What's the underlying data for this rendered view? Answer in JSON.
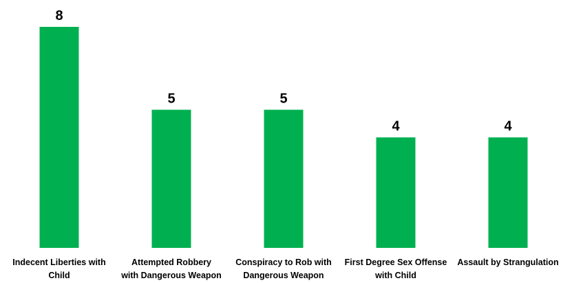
{
  "chart_data": {
    "type": "bar",
    "title": "",
    "xlabel": "",
    "ylabel": "",
    "categories": [
      [
        "Indecent Liberties with",
        "Child"
      ],
      [
        "Attempted Robbery",
        "with Dangerous Weapon"
      ],
      [
        "Conspiracy to Rob with",
        "Dangerous Weapon"
      ],
      [
        "First Degree Sex Offense",
        "with Child"
      ],
      [
        "Assault by Strangulation"
      ]
    ],
    "values": [
      8,
      5,
      5,
      4,
      4
    ],
    "value_labels": [
      "8",
      "5",
      "5",
      "4",
      "4"
    ],
    "ylim": [
      0,
      8
    ],
    "bar_color": "#00b050",
    "grid": false,
    "legend": "none",
    "data_labels": "above"
  }
}
